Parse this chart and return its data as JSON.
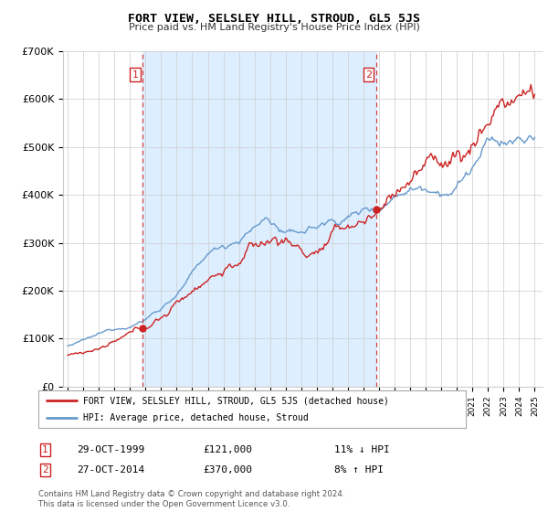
{
  "title": "FORT VIEW, SELSLEY HILL, STROUD, GL5 5JS",
  "subtitle": "Price paid vs. HM Land Registry's House Price Index (HPI)",
  "ylim": [
    0,
    700000
  ],
  "yticks": [
    0,
    100000,
    200000,
    300000,
    400000,
    500000,
    600000,
    700000
  ],
  "ytick_labels": [
    "£0",
    "£100K",
    "£200K",
    "£300K",
    "£400K",
    "£500K",
    "£600K",
    "£700K"
  ],
  "hpi_color": "#6699cc",
  "price_color": "#cc2222",
  "dashed_line_color": "#cc2222",
  "shade_color": "#ddeeff",
  "point1_year": 1999.83,
  "point1_value": 121000,
  "point1_label": "1",
  "point1_date": "29-OCT-1999",
  "point1_price": "£121,000",
  "point1_hpi_diff": "11% ↓ HPI",
  "point2_year": 2014.83,
  "point2_value": 370000,
  "point2_label": "2",
  "point2_date": "27-OCT-2014",
  "point2_price": "£370,000",
  "point2_hpi_diff": "8% ↑ HPI",
  "legend_label1": "FORT VIEW, SELSLEY HILL, STROUD, GL5 5JS (detached house)",
  "legend_label2": "HPI: Average price, detached house, Stroud",
  "footer": "Contains HM Land Registry data © Crown copyright and database right 2024.\nThis data is licensed under the Open Government Licence v3.0.",
  "bg_color": "#ffffff",
  "grid_color": "#cccccc"
}
